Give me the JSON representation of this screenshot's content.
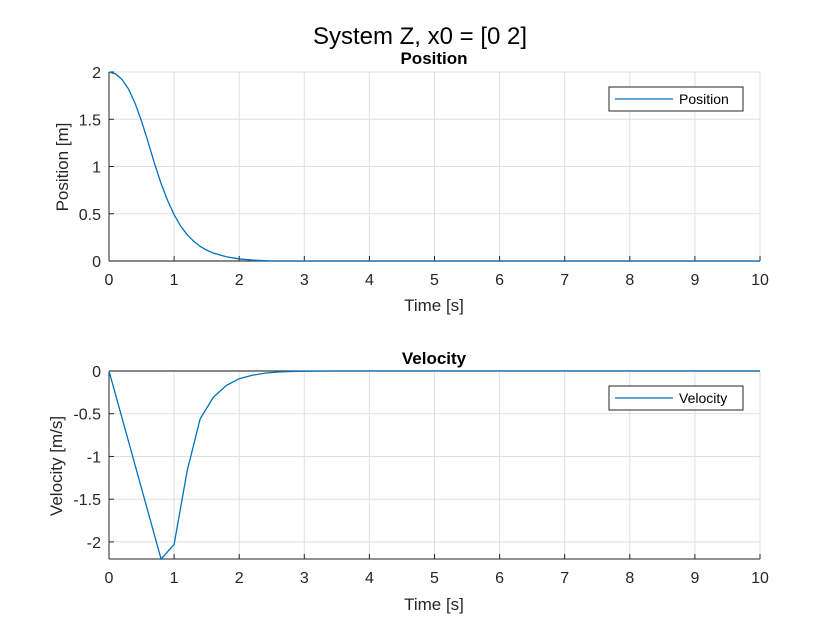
{
  "figure": {
    "title": "System Z, x0 = [0 2]"
  },
  "chart_data": [
    {
      "type": "line",
      "title": "Position",
      "xlabel": "Time [s]",
      "ylabel": "Position [m]",
      "xlim": [
        0,
        10
      ],
      "ylim": [
        0,
        2
      ],
      "xticks": [
        "0",
        "1",
        "2",
        "3",
        "4",
        "5",
        "6",
        "7",
        "8",
        "9",
        "10"
      ],
      "yticks": [
        "0",
        "0.5",
        "1",
        "1.5",
        "2"
      ],
      "grid": true,
      "legend_position": "top-right",
      "color": "#0072BD",
      "series": [
        {
          "name": "Position",
          "x": [
            0,
            0.1,
            0.2,
            0.3,
            0.4,
            0.5,
            0.6,
            0.7,
            0.8,
            0.9,
            1.0,
            1.1,
            1.2,
            1.3,
            1.4,
            1.5,
            1.6,
            1.8,
            2.0,
            2.2,
            2.5,
            3.0,
            4.0,
            5.0,
            6.0,
            7.0,
            8.0,
            9.0,
            10.0
          ],
          "y": [
            2.0,
            1.98,
            1.92,
            1.82,
            1.67,
            1.48,
            1.26,
            1.03,
            0.82,
            0.64,
            0.49,
            0.37,
            0.28,
            0.21,
            0.155,
            0.115,
            0.085,
            0.045,
            0.022,
            0.01,
            0.0,
            0.0,
            0.0,
            0.0,
            0.0,
            0.0,
            0.0,
            0.0,
            0.0
          ]
        }
      ]
    },
    {
      "type": "line",
      "title": "Velocity",
      "xlabel": "Time [s]",
      "ylabel": "Velocity [m/s]",
      "xlim": [
        0,
        10
      ],
      "ylim": [
        -2.2,
        0
      ],
      "xticks": [
        "0",
        "1",
        "2",
        "3",
        "4",
        "5",
        "6",
        "7",
        "8",
        "9",
        "10"
      ],
      "yticks": [
        "0",
        "-0.5",
        "-1",
        "-1.5",
        "-2"
      ],
      "grid": true,
      "legend_position": "top-right",
      "color": "#0072BD",
      "series": [
        {
          "name": "Velocity",
          "x": [
            0,
            0.8,
            1.0,
            1.2,
            1.4,
            1.6,
            1.8,
            2.0,
            2.2,
            2.4,
            2.6,
            2.8,
            3.0,
            3.5,
            4.0,
            5.0,
            6.0,
            7.0,
            8.0,
            9.0,
            10.0
          ],
          "y": [
            0,
            -2.2,
            -2.03,
            -1.17,
            -0.56,
            -0.31,
            -0.17,
            -0.09,
            -0.05,
            -0.025,
            -0.012,
            -0.006,
            -0.003,
            0,
            0,
            0,
            0,
            0,
            0,
            0,
            0
          ]
        }
      ]
    }
  ]
}
